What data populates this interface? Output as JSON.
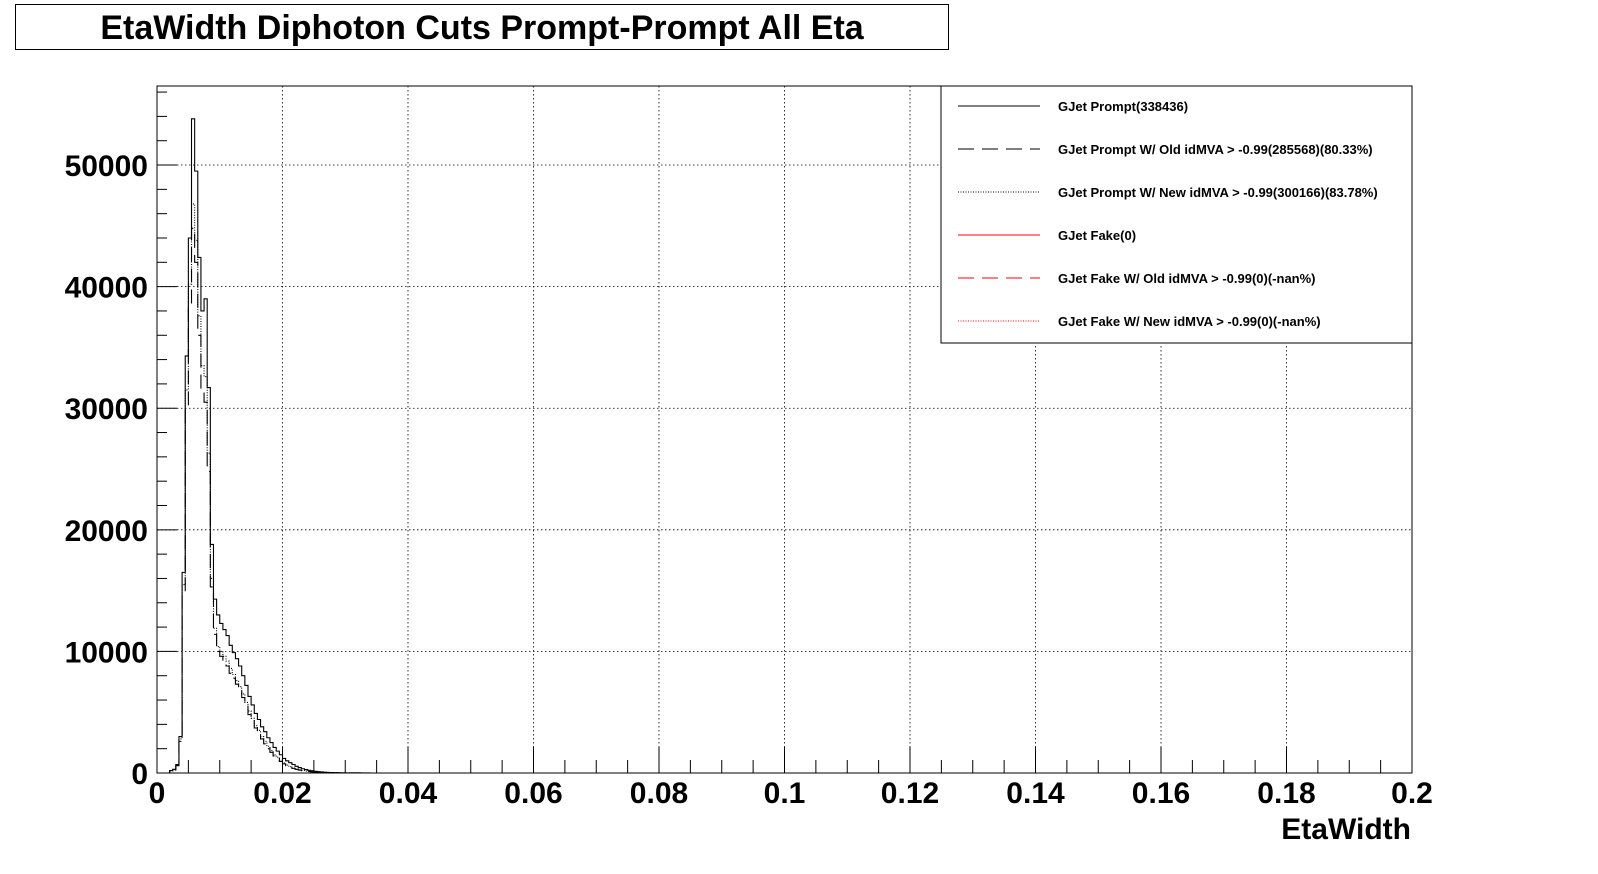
{
  "title": "EtaWidth Diphoton Cuts Prompt-Prompt All Eta",
  "chart_data": {
    "type": "histogram",
    "title": "EtaWidth Diphoton Cuts Prompt-Prompt All Eta",
    "xlabel": "EtaWidth",
    "ylabel": "",
    "xlim": [
      0,
      0.2
    ],
    "ylim": [
      0,
      56500
    ],
    "grid": true,
    "legend_position": "top-right",
    "x_ticks": [
      0,
      0.02,
      0.04,
      0.06,
      0.08,
      0.1,
      0.12,
      0.14,
      0.16,
      0.18,
      0.2
    ],
    "x_tick_labels": [
      "0",
      "0.02",
      "0.04",
      "0.06",
      "0.08",
      "0.1",
      "0.12",
      "0.14",
      "0.16",
      "0.18",
      "0.2"
    ],
    "y_ticks": [
      0,
      10000,
      20000,
      30000,
      40000,
      50000
    ],
    "y_tick_labels": [
      "0",
      "10000",
      "20000",
      "30000",
      "40000",
      "50000"
    ],
    "bin_edges": [
      0.0,
      0.0005,
      0.001,
      0.0015,
      0.002,
      0.0025,
      0.003,
      0.0035,
      0.004,
      0.0045,
      0.005,
      0.0055,
      0.006,
      0.0065,
      0.007,
      0.0075,
      0.008,
      0.0085,
      0.009,
      0.0095,
      0.01,
      0.0105,
      0.011,
      0.0115,
      0.012,
      0.0125,
      0.013,
      0.0135,
      0.014,
      0.0145,
      0.015,
      0.0155,
      0.016,
      0.0165,
      0.017,
      0.0175,
      0.018,
      0.0185,
      0.019,
      0.0195,
      0.02,
      0.0205,
      0.021,
      0.0215,
      0.022,
      0.0225,
      0.023,
      0.0235,
      0.024,
      0.0245,
      0.025,
      0.0255,
      0.026,
      0.0265,
      0.027,
      0.0275,
      0.028,
      0.0285,
      0.029,
      0.0295,
      0.03,
      0.0305,
      0.031,
      0.0315,
      0.032,
      0.0325,
      0.033,
      0.0335,
      0.034,
      0.0345,
      0.035,
      0.0355,
      0.036,
      0.0365,
      0.037,
      0.0375,
      0.038,
      0.0385,
      0.039,
      0.0395,
      0.04
    ],
    "series": [
      {
        "name": "GJet Prompt(338436)",
        "color": "#000000",
        "dash": "solid",
        "values": [
          0,
          0,
          0,
          0,
          200,
          300,
          700,
          3000,
          16500,
          34300,
          44000,
          53800,
          49500,
          42400,
          38000,
          39000,
          31700,
          18800,
          14300,
          13000,
          12300,
          11800,
          11300,
          10500,
          9900,
          9400,
          8800,
          8000,
          7200,
          6300,
          5600,
          4900,
          4400,
          3800,
          3400,
          2900,
          2500,
          2100,
          1800,
          1500,
          1200,
          1000,
          850,
          700,
          550,
          450,
          350,
          280,
          220,
          180,
          140,
          110,
          85,
          65,
          50,
          40,
          30,
          24,
          18,
          14,
          10,
          8,
          6,
          5,
          4,
          3,
          2,
          2,
          1,
          1,
          1,
          1,
          0,
          0,
          0,
          0,
          0,
          0,
          0,
          0
        ]
      },
      {
        "name": "GJet Prompt W/ Old idMVA > -0.99(285568)(80.33%)",
        "color": "#000000",
        "dash": "dashed",
        "values": [
          0,
          0,
          0,
          0,
          150,
          250,
          600,
          2600,
          14800,
          30200,
          38400,
          44800,
          42000,
          36000,
          31400,
          30500,
          24800,
          15300,
          11400,
          10000,
          9600,
          9200,
          8800,
          8200,
          7800,
          7300,
          6800,
          6200,
          5500,
          4800,
          4300,
          3700,
          3300,
          2800,
          2400,
          2000,
          1700,
          1400,
          1200,
          950,
          750,
          600,
          480,
          380,
          300,
          240,
          190,
          150,
          120,
          95,
          75,
          58,
          45,
          35,
          27,
          21,
          16,
          12,
          9,
          7,
          5,
          4,
          3,
          2,
          2,
          1,
          1,
          1,
          0,
          0,
          0,
          0,
          0,
          0,
          0,
          0,
          0,
          0,
          0,
          0
        ]
      },
      {
        "name": "GJet Prompt W/ New idMVA > -0.99(300166)(83.78%)",
        "color": "#000000",
        "dash": "dotted",
        "values": [
          0,
          0,
          0,
          0,
          170,
          270,
          650,
          2800,
          15500,
          31500,
          40200,
          46800,
          43800,
          37600,
          33500,
          32600,
          26300,
          16000,
          11900,
          10400,
          10000,
          9600,
          9200,
          8600,
          8100,
          7600,
          7100,
          6500,
          5800,
          5100,
          4500,
          3900,
          3500,
          3000,
          2600,
          2200,
          1850,
          1500,
          1300,
          1050,
          820,
          650,
          520,
          410,
          320,
          260,
          205,
          160,
          130,
          100,
          80,
          62,
          48,
          37,
          29,
          22,
          17,
          13,
          10,
          8,
          6,
          4,
          3,
          2,
          2,
          1,
          1,
          1,
          0,
          0,
          0,
          0,
          0,
          0,
          0,
          0,
          0,
          0,
          0,
          0
        ]
      },
      {
        "name": "GJet Fake(0)",
        "color": "#ff0000",
        "dash": "solid",
        "values": []
      },
      {
        "name": "GJet Fake W/ Old idMVA > -0.99(0)(-nan%)",
        "color": "#ff0000",
        "dash": "dashed",
        "values": []
      },
      {
        "name": "GJet Fake W/ New idMVA > -0.99(0)(-nan%)",
        "color": "#ff0000",
        "dash": "dotted",
        "values": []
      }
    ]
  }
}
